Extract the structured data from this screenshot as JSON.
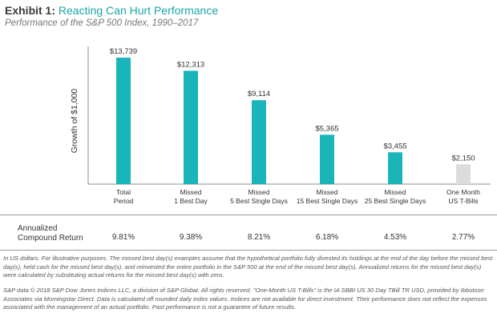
{
  "header": {
    "title_lead": "Exhibit 1:",
    "title_main": "Reacting Can Hurt Performance",
    "subtitle": "Performance of the S&P 500 Index, 1990–2017"
  },
  "chart_data": {
    "type": "bar",
    "ylabel": "Growth of $1,000",
    "categories": [
      [
        "Total",
        "Period"
      ],
      [
        "Missed",
        "1 Best Day"
      ],
      [
        "Missed",
        "5 Best Single Days"
      ],
      [
        "Missed",
        "15 Best Single Days"
      ],
      [
        "Missed",
        "25 Best Single Days"
      ],
      [
        "One Month",
        "US T-Bills"
      ]
    ],
    "values": [
      13739,
      12313,
      9114,
      5365,
      3455,
      2150
    ],
    "value_labels": [
      "$13,739",
      "$12,313",
      "$9,114",
      "$5,365",
      "$3,455",
      "$2,150"
    ],
    "bar_colors": [
      "#1ab5b8",
      "#1ab5b8",
      "#1ab5b8",
      "#1ab5b8",
      "#1ab5b8",
      "#dcdcdc"
    ],
    "ylim": [
      0,
      14000
    ],
    "grid": false
  },
  "returns": {
    "label_line1": "Annualized",
    "label_line2": "Compound Return",
    "values": [
      "9.81%",
      "9.38%",
      "8.21%",
      "6.18%",
      "4.53%",
      "2.77%"
    ]
  },
  "notes": {
    "note1": "In US dollars. For illustrative purposes. The missed best day(s) examples assume that the hypothetical portfolio fully divested its holdings at the end of the day before the missed best day(s), held cash for the missed best day(s), and reinvested the entire portfolio in the S&P 500 at the end of the missed best day(s). Annualized returns for the missed best day(s) were calculated by substituting actual returns for the missed best day(s) with zero.",
    "note2": "S&P data © 2018 S&P Dow Jones Indices LLC, a division of S&P Global. All rights reserved. \"One-Month US T-Bills\" is the IA SBBI US 30 Day TBill TR USD, provided by Ibbotson Associates via Morningstar Direct. Data is calculated off rounded daily index values. Indices are not available for direct investment. Their performance does not reflect the expenses associated with the management of an actual portfolio. Past performance is not a guarantee of future results."
  }
}
